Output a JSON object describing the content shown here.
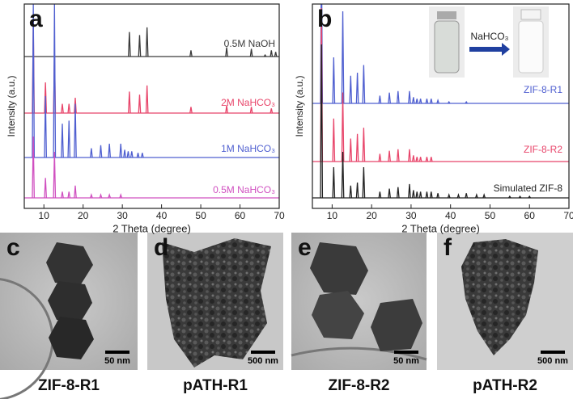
{
  "chart_data": [
    {
      "type": "line",
      "panel": "a",
      "xlabel": "2 Theta (degree)",
      "ylabel": "Intensity (a.u.)",
      "xlim": [
        5,
        70
      ],
      "xticks": [
        10,
        20,
        30,
        40,
        50,
        60,
        70
      ],
      "series": [
        {
          "name": "0.5M NaOH",
          "color": "#3a3a3a",
          "x": [
            31.8,
            34.4,
            36.3,
            47.5,
            56.6,
            62.9,
            66.4,
            68,
            69.1
          ],
          "values": [
            16,
            14,
            19,
            4,
            6,
            5,
            1,
            4,
            3
          ]
        },
        {
          "name": "2M NaHCO₃",
          "color": "#e8456a",
          "x": [
            7.3,
            10.4,
            12.7,
            14.7,
            16.4,
            18,
            31.8,
            34.4,
            36.3,
            47.5,
            56.6,
            62.9,
            68
          ],
          "values": [
            60,
            20,
            40,
            6,
            6,
            10,
            14,
            12,
            18,
            4,
            5,
            4,
            3
          ]
        },
        {
          "name": "1M NaHCO₃",
          "color": "#4f5fd0",
          "x": [
            7.3,
            10.4,
            12.7,
            14.7,
            16.4,
            18,
            22.1,
            24.5,
            26.7,
            29.6,
            30.6,
            31.5,
            32.4,
            34,
            35.1
          ],
          "values": [
            100,
            40,
            100,
            22,
            24,
            35,
            6,
            8,
            9,
            9,
            5,
            4,
            4,
            3,
            3
          ]
        },
        {
          "name": "0.5M NaHCO₃",
          "color": "#d050c0",
          "x": [
            7.3,
            10.4,
            12.7,
            14.7,
            16.4,
            18,
            22.1,
            24.5,
            26.7,
            29.6
          ],
          "values": [
            40,
            13,
            30,
            4,
            4,
            8,
            2,
            2,
            2,
            2
          ]
        }
      ]
    },
    {
      "type": "line",
      "panel": "b",
      "xlabel": "2 Theta (degree)",
      "ylabel": "Intensity (a.u.)",
      "inset_label": "NaHCO₃",
      "xlim": [
        5,
        70
      ],
      "xticks": [
        10,
        20,
        30,
        40,
        50,
        60,
        70
      ],
      "series": [
        {
          "name": "ZIF-8-R1",
          "color": "#4f5fd0",
          "x": [
            7.3,
            10.4,
            12.7,
            14.7,
            16.4,
            18,
            22.1,
            24.5,
            26.7,
            29.6,
            30.6,
            31.5,
            32.4,
            34,
            35.1,
            36.8,
            39.6,
            44
          ],
          "values": [
            100,
            30,
            60,
            18,
            20,
            25,
            5,
            7,
            8,
            8,
            4,
            3,
            3,
            3,
            3,
            2,
            1,
            1
          ]
        },
        {
          "name": "ZIF-8-R2",
          "color": "#e8456a",
          "x": [
            7.3,
            10.4,
            12.7,
            14.7,
            16.4,
            18,
            22.1,
            24.5,
            26.7,
            29.6,
            30.6,
            31.5,
            32.4,
            34,
            35.1
          ],
          "values": [
            100,
            28,
            45,
            15,
            18,
            22,
            5,
            7,
            8,
            8,
            4,
            3,
            3,
            3,
            3
          ]
        },
        {
          "name": "Simulated ZIF-8",
          "color": "#222222",
          "x": [
            7.3,
            10.4,
            12.7,
            14.7,
            16.4,
            18,
            22.1,
            24.5,
            26.7,
            29.6,
            30.6,
            31.5,
            32.4,
            34,
            35.1,
            36.8,
            39.6,
            42,
            44,
            46.6,
            48.5,
            55,
            57.6,
            60
          ],
          "values": [
            100,
            20,
            30,
            8,
            10,
            20,
            4,
            6,
            7,
            9,
            5,
            4,
            4,
            4,
            4,
            3,
            2,
            2,
            3,
            2,
            2,
            1,
            1,
            1
          ]
        }
      ]
    }
  ],
  "images": [
    {
      "panel": "c",
      "caption": "ZIF-8-R1",
      "scale_bar": "50 nm"
    },
    {
      "panel": "d",
      "caption": "pATH-R1",
      "scale_bar": "500 nm"
    },
    {
      "panel": "e",
      "caption": "ZIF-8-R2",
      "scale_bar": "50 nm"
    },
    {
      "panel": "f",
      "caption": "pATH-R2",
      "scale_bar": "500 nm"
    }
  ]
}
